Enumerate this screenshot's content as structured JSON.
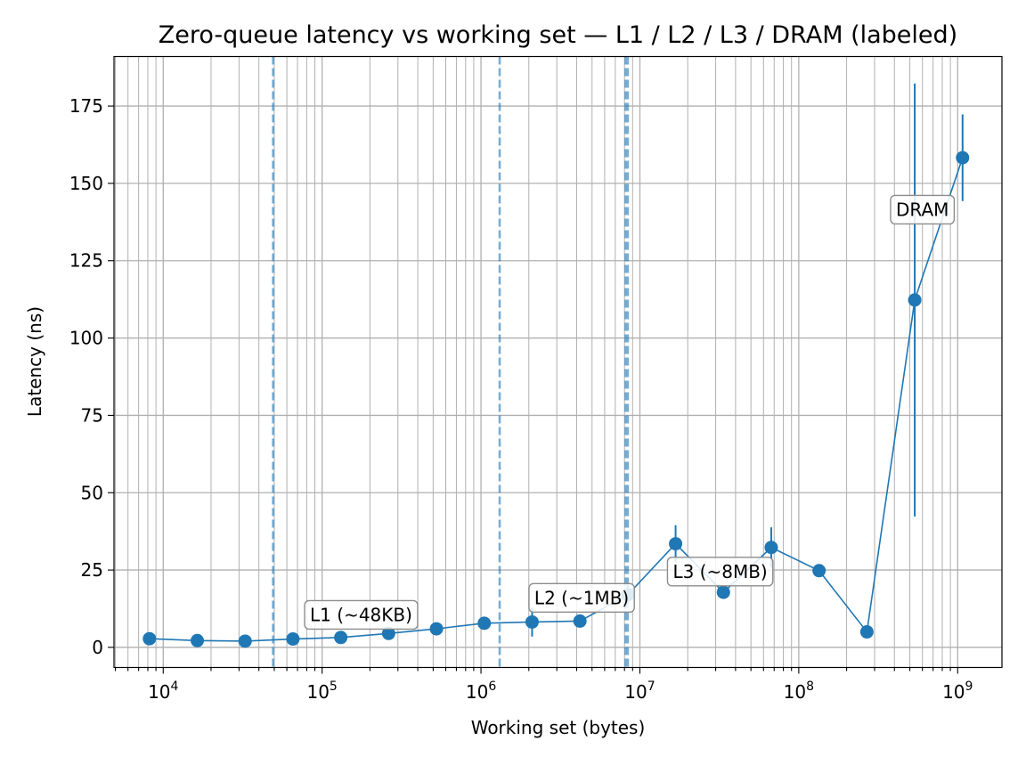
{
  "chart_data": {
    "type": "line",
    "title": "Zero-queue latency vs working set — L1 / L2 / L3 / DRAM (labeled)",
    "xlabel": "Working set (bytes)",
    "ylabel": "Latency (ns)",
    "xscale": "log",
    "xlim": [
      4900,
      1900000000
    ],
    "ylim": [
      -6.5,
      191
    ],
    "grid": true,
    "x_major_ticks": [
      {
        "value": 10000,
        "label": "10",
        "exp": "4"
      },
      {
        "value": 100000,
        "label": "10",
        "exp": "5"
      },
      {
        "value": 1000000,
        "label": "10",
        "exp": "6"
      },
      {
        "value": 10000000,
        "label": "10",
        "exp": "7"
      },
      {
        "value": 100000000,
        "label": "10",
        "exp": "8"
      },
      {
        "value": 1000000000,
        "label": "10",
        "exp": "9"
      }
    ],
    "y_ticks": [
      {
        "value": 0,
        "label": "0"
      },
      {
        "value": 25,
        "label": "25"
      },
      {
        "value": 50,
        "label": "50"
      },
      {
        "value": 75,
        "label": "75"
      },
      {
        "value": 100,
        "label": "100"
      },
      {
        "value": 125,
        "label": "125"
      },
      {
        "value": 150,
        "label": "150"
      },
      {
        "value": 175,
        "label": "175"
      }
    ],
    "series": [
      {
        "color": "#1f77b4",
        "x": [
          8192,
          16384,
          32768,
          65536,
          131072,
          262144,
          524288,
          1048576,
          2097152,
          4194304,
          8388608,
          16777216,
          33554432,
          67108864,
          134217728,
          268435456,
          536870912,
          1073741824
        ],
        "y": [
          2.8,
          2.2,
          2.0,
          2.7,
          3.2,
          4.5,
          6.0,
          7.8,
          8.2,
          8.5,
          17.0,
          33.5,
          17.8,
          32.3,
          24.8,
          5.0,
          112.3,
          158.3
        ],
        "err": [
          0.4,
          0.3,
          0.3,
          0.3,
          0.4,
          0.5,
          0.8,
          1.0,
          4.7,
          1.2,
          3.0,
          6.0,
          1.8,
          6.5,
          1.0,
          0.8,
          70.0,
          14.0
        ]
      }
    ],
    "cache_lines": [
      {
        "value": 49152,
        "color": "#1f77b4"
      },
      {
        "value": 1310720,
        "color": "#1f77b4"
      },
      {
        "value": 8126464,
        "color": "#1f77b4"
      },
      {
        "value": 8388608,
        "color": "#1f77b4"
      }
    ],
    "annotations": [
      {
        "text": "L1 (~48KB)",
        "x": 176000,
        "y": 10.5
      },
      {
        "text": "L2 (~1MB)",
        "x": 4300000,
        "y": 16.0
      },
      {
        "text": "L3 (~8MB)",
        "x": 32000000,
        "y": 24.5
      },
      {
        "text": "DRAM",
        "x": 600000000,
        "y": 141.5
      }
    ]
  }
}
